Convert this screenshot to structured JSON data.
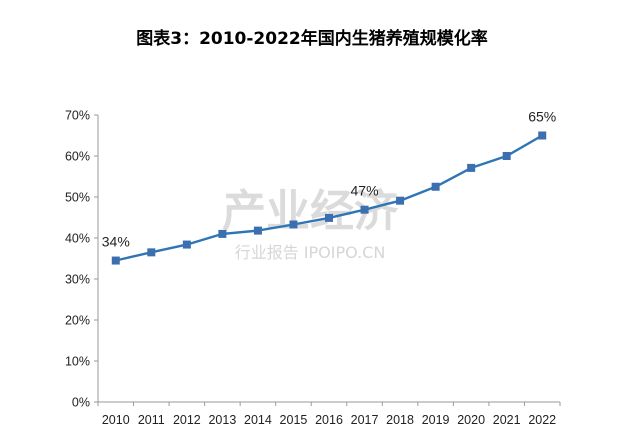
{
  "chart_data": {
    "type": "line",
    "title": "图表3：2010-2022年国内生猪养殖规模化率",
    "xlabel": "",
    "ylabel": "",
    "categories": [
      "2010",
      "2011",
      "2012",
      "2013",
      "2014",
      "2015",
      "2016",
      "2017",
      "2018",
      "2019",
      "2020",
      "2021",
      "2022"
    ],
    "series": [
      {
        "values": [
          34.5,
          36.5,
          38.4,
          41.0,
          41.8,
          43.3,
          44.9,
          46.9,
          49.1,
          52.5,
          57.1,
          60.0,
          65.0
        ]
      }
    ],
    "ylim": [
      0,
      70
    ],
    "ytick_labels": [
      "0%",
      "10%",
      "20%",
      "30%",
      "40%",
      "50%",
      "60%",
      "70%"
    ],
    "data_labels": [
      {
        "index": 0,
        "text": "34%"
      },
      {
        "index": 7,
        "text": "47%"
      },
      {
        "index": 12,
        "text": "65%"
      }
    ],
    "grid": false,
    "line_color": "#2e75b6",
    "marker_color": "#3c6fb0"
  },
  "watermark": {
    "brand": "产业经济",
    "tagline": "行业报告 IPOIPO.CN"
  }
}
